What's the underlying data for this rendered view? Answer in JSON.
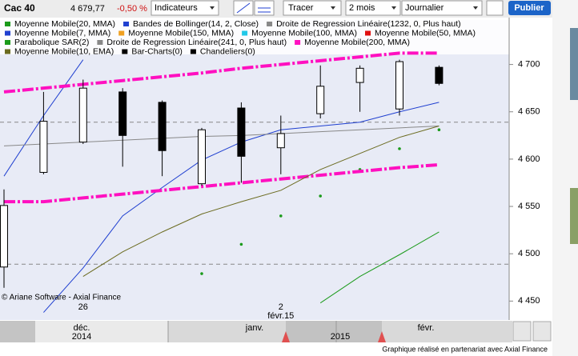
{
  "toolbar": {
    "instrument": "Cac 40",
    "last": "4 679,77",
    "change": "-0,50 %",
    "indicators": "Indicateurs",
    "draw": "Tracer",
    "period": "2 mois",
    "interval": "Journalier",
    "publish": "Publier"
  },
  "chart_data": {
    "type": "candlestick",
    "categories": [
      null,
      null,
      "26",
      null,
      null,
      null,
      null,
      "2",
      null,
      null,
      null,
      null
    ],
    "secondary_labels": [
      null,
      null,
      null,
      null,
      null,
      null,
      null,
      "févr.15",
      null,
      null,
      null,
      null
    ],
    "open": [
      4486,
      4586,
      4618,
      4671,
      4660,
      4574,
      4654,
      4612,
      4648,
      4681,
      4653,
      4697
    ],
    "high": [
      4568,
      4671,
      4684,
      4675,
      4662,
      4633,
      4660,
      4646,
      4699,
      4699,
      4705,
      4699
    ],
    "low": [
      4464,
      4584,
      4616,
      4592,
      4582,
      4572,
      4575,
      4584,
      4643,
      4650,
      4646,
      4678
    ],
    "close": [
      4551,
      4640,
      4675,
      4625,
      4609,
      4631,
      4603,
      4627,
      4677,
      4696,
      4703,
      4680
    ],
    "up_color": "#ffffff",
    "down_color": "#000000",
    "ylim": [
      4430,
      4747
    ],
    "yticks": [
      {
        "value": 4450,
        "label": "4 450"
      },
      {
        "value": 4500,
        "label": "4 500"
      },
      {
        "value": 4550,
        "label": "4 550"
      },
      {
        "value": 4600,
        "label": "4 600"
      },
      {
        "value": 4650,
        "label": "4 650"
      },
      {
        "value": 4700,
        "label": "4 700"
      }
    ],
    "reference_lines": [
      4639,
      4489
    ],
    "series": [
      {
        "name": "Moyenne Mobile(20, MMA)",
        "color": "#1a9a1a",
        "values": [
          null,
          null,
          null,
          null,
          null,
          null,
          null,
          null,
          4448,
          4476,
          4499,
          4523
        ]
      },
      {
        "name": "Bandes de Bollinger(14, 2, Close)",
        "color": "#1f3fd0",
        "values": [
          4582,
          4646,
          4705,
          null,
          null,
          null,
          null,
          null,
          null,
          null,
          null,
          null
        ]
      },
      {
        "name": "Droite de Regression Linéaire(1232, 0, Plus haut)",
        "color": "#888888"
      },
      {
        "name": "Moyenne Mobile(7, MMA)",
        "color": "#1f3fd0",
        "values": [
          null,
          4438,
          4485,
          4540,
          4570,
          4599,
          4618,
          4631,
          4635,
          4639,
          4650,
          4660
        ]
      },
      {
        "name": "Moyenne Mobile(150, MMA)",
        "color": "#f0a020"
      },
      {
        "name": "Moyenne Mobile(100, MMA)",
        "color": "#20c8e8"
      },
      {
        "name": "Moyenne Mobile(50, MMA)",
        "color": "#e01010"
      },
      {
        "name": "Parabolique SAR(2)",
        "color": "#1a9a1a",
        "style": "dots",
        "values": [
          null,
          null,
          null,
          null,
          null,
          4479,
          4510,
          4540,
          4561,
          4589,
          4611,
          4631
        ]
      },
      {
        "name": "Droite de Regression Linéaire(241, 0, Plus haut)",
        "color": "#888888",
        "values": [
          4614,
          4616,
          4618,
          4620,
          4622,
          4624,
          4625,
          4627,
          4629,
          4631,
          4633,
          4635
        ]
      },
      {
        "name": "Moyenne Mobile(200, MMA)",
        "color": "#ff10c0",
        "style": "channel",
        "upper": [
          4671,
          4675,
          4679,
          4683,
          4687,
          4691,
          4696,
          4700,
          4704,
          4708,
          4712,
          4712
        ],
        "lower": [
          4555,
          4555,
          4559,
          4563,
          4567,
          4571,
          4575,
          4579,
          4583,
          4587,
          4591,
          4594
        ]
      },
      {
        "name": "Moyenne Mobile(10, EMA)",
        "color": "#6b6b20",
        "values": [
          null,
          null,
          4476,
          4502,
          4523,
          4542,
          4555,
          4567,
          4589,
          4606,
          4623,
          4635
        ]
      },
      {
        "name": "Bar-Charts(0)",
        "color": "#000000"
      },
      {
        "name": "Chandeliers(0)",
        "color": "#000000"
      }
    ],
    "copyright": "© Ariane Software - Axial Finance"
  },
  "navigator": {
    "months": [
      "déc.",
      "janv.",
      "févr."
    ],
    "years": [
      "2014",
      "2015"
    ]
  },
  "footer": "Graphique réalisé en partenariat avec Axial Finance"
}
